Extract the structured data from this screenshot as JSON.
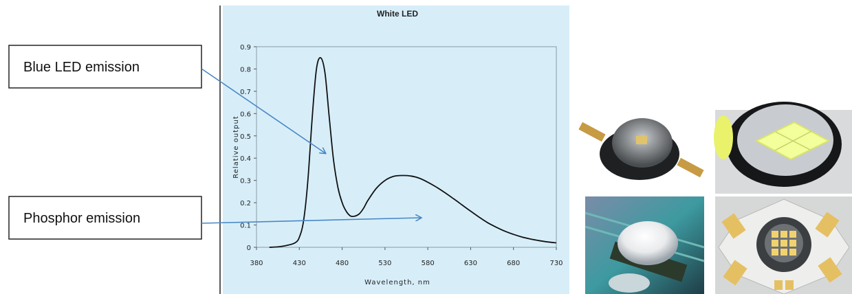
{
  "callouts": {
    "blue": "Blue LED emission",
    "phosphor": "Phosphor emission"
  },
  "photos": [
    {
      "icon": "led-emitter-lens-photo"
    },
    {
      "icon": "led-yellow-phosphor-chip-photo"
    },
    {
      "icon": "led-dome-on-board-photo"
    },
    {
      "icon": "multi-chip-led-star-board-photo"
    }
  ],
  "colors": {
    "plot_background": "#d7eef9",
    "curve": "#111111",
    "arrow": "#4b87c5"
  },
  "chart_data": {
    "type": "line",
    "title": "White LED",
    "xlabel": "Wavelength, nm",
    "ylabel": "Relative output",
    "xlim": [
      380,
      730
    ],
    "ylim": [
      0,
      0.9
    ],
    "xticks": [
      380,
      430,
      480,
      530,
      580,
      630,
      680,
      730
    ],
    "yticks": [
      "0",
      "0.1",
      "0.2",
      "0.3",
      "0.4",
      "0.5",
      "0.6",
      "0.7",
      "0.8",
      "0.9"
    ],
    "grid": false,
    "series": [
      {
        "x": [
          395,
          405,
          415,
          425,
          430,
          435,
          440,
          445,
          450,
          455,
          460,
          465,
          470,
          475,
          480,
          485,
          490,
          495,
          500,
          505,
          510,
          520,
          530,
          540,
          550,
          560,
          570,
          580,
          590,
          600,
          610,
          620,
          630,
          640,
          650,
          660,
          670,
          680,
          690,
          700,
          710,
          720,
          730
        ],
        "y": [
          0.0,
          0.002,
          0.008,
          0.02,
          0.045,
          0.12,
          0.3,
          0.58,
          0.8,
          0.85,
          0.78,
          0.58,
          0.39,
          0.27,
          0.2,
          0.16,
          0.14,
          0.14,
          0.15,
          0.175,
          0.21,
          0.265,
          0.3,
          0.318,
          0.322,
          0.32,
          0.31,
          0.292,
          0.27,
          0.245,
          0.218,
          0.19,
          0.162,
          0.135,
          0.11,
          0.09,
          0.072,
          0.058,
          0.046,
          0.037,
          0.03,
          0.024,
          0.02
        ]
      }
    ]
  }
}
